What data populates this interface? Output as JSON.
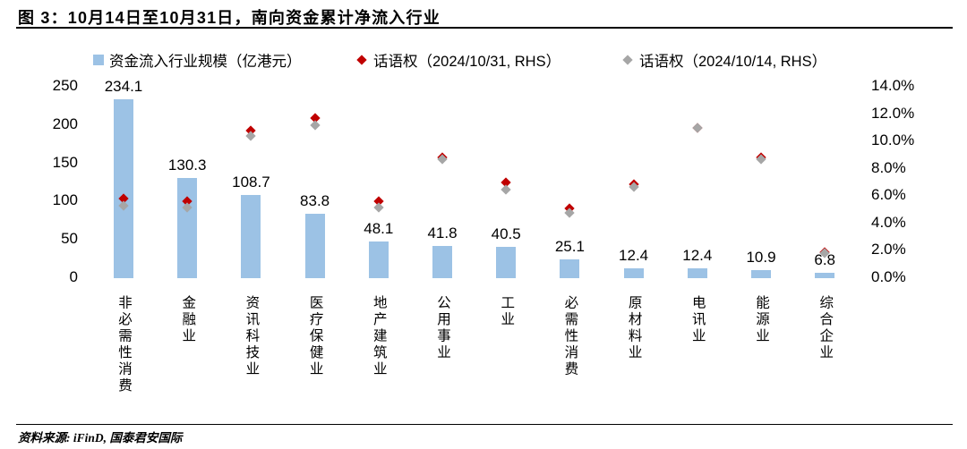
{
  "title": "图 3：10月14日至10月31日，南向资金累计净流入行业",
  "footer": {
    "text": "资料来源: iFinD, 国泰君安国际"
  },
  "chart_data": {
    "type": "bar",
    "title": "图 3：10月14日至10月31日，南向资金累计净流入行业",
    "categories": [
      "非必需性消费",
      "金融业",
      "资讯科技业",
      "医疗保健业",
      "地产建筑业",
      "公用事业",
      "工业",
      "必需性消费",
      "原材料业",
      "电讯业",
      "能源业",
      "综合企业"
    ],
    "series": [
      {
        "name": "资金流入行业规模（亿港元）",
        "type": "bar",
        "marker": "square",
        "color": "#9CC2E5",
        "axis": "left",
        "values": [
          234.1,
          130.3,
          108.7,
          83.8,
          48.1,
          41.8,
          40.5,
          25.1,
          12.4,
          12.4,
          10.9,
          6.8
        ]
      },
      {
        "name": "话语权（2024/10/31, RHS）",
        "type": "scatter",
        "marker": "diamond",
        "color": "#C00000",
        "axis": "right",
        "values": [
          5.8,
          5.6,
          10.8,
          11.7,
          5.6,
          8.8,
          7.0,
          5.1,
          6.9,
          11.0,
          8.8,
          1.9
        ]
      },
      {
        "name": "话语权（2024/10/14, RHS）",
        "type": "scatter",
        "marker": "diamond",
        "color": "#A6A6A6",
        "axis": "right",
        "values": [
          5.3,
          5.2,
          10.4,
          11.2,
          5.2,
          8.7,
          6.5,
          4.8,
          6.7,
          11.0,
          8.7,
          1.8
        ]
      }
    ],
    "left_axis": {
      "ticks": [
        0,
        50,
        100,
        150,
        200,
        250
      ],
      "max": 250
    },
    "right_axis": {
      "ticks": [
        "0.0%",
        "2.0%",
        "4.0%",
        "6.0%",
        "8.0%",
        "10.0%",
        "12.0%",
        "14.0%"
      ],
      "max": 14,
      "step": 2
    },
    "grid": false,
    "legend_position": "top"
  }
}
